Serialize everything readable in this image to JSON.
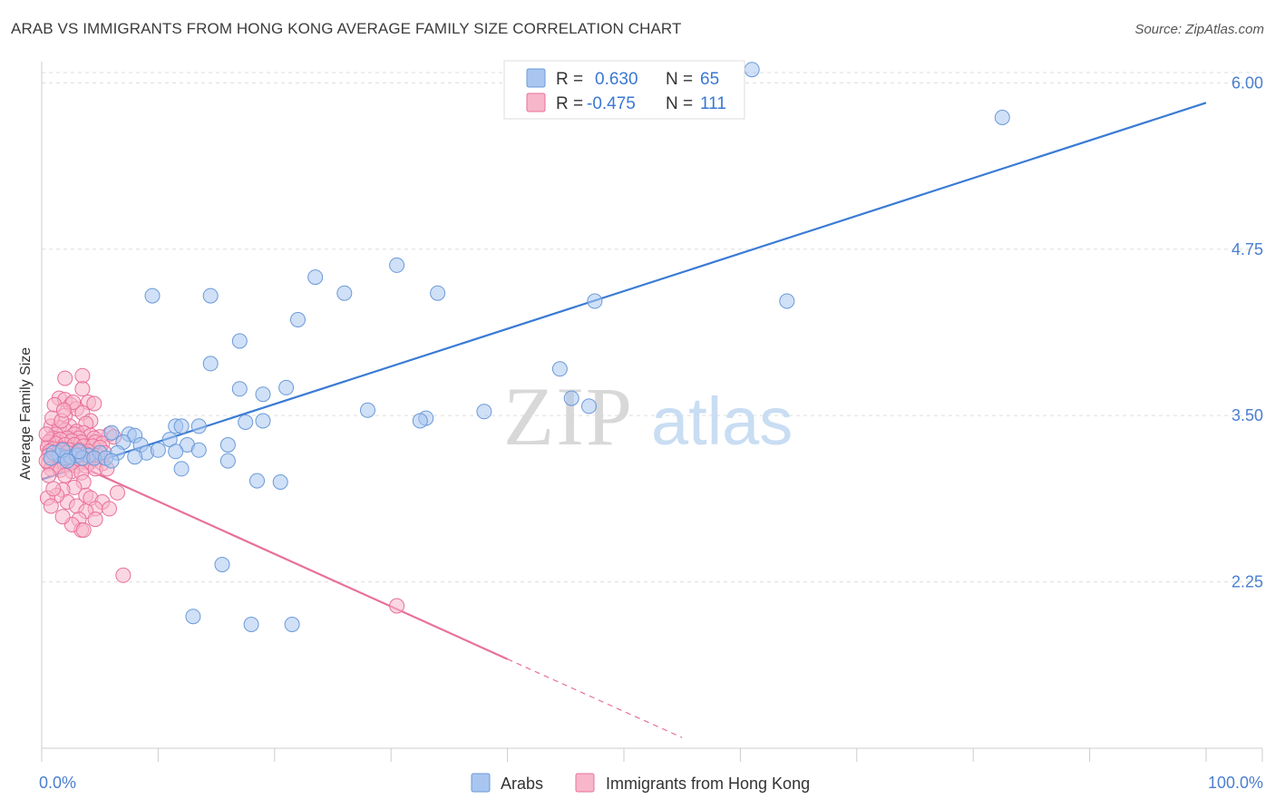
{
  "title": "ARAB VS IMMIGRANTS FROM HONG KONG AVERAGE FAMILY SIZE CORRELATION CHART",
  "source": "Source: ZipAtlas.com",
  "watermark": {
    "zip": "ZIP",
    "atlas": "atlas"
  },
  "legend": {
    "r_label": "R =",
    "n_label": "N =",
    "rows": [
      {
        "r": "0.630",
        "n": "65"
      },
      {
        "r": "-0.475",
        "n": "111"
      }
    ]
  },
  "colors": {
    "arabs_fill": "#a9c6f0",
    "arabs_stroke": "#6a9ad8",
    "arabs_line": "#3a7bd5",
    "hk_fill": "#f7b6ca",
    "hk_stroke": "#e8709a",
    "hk_line": "#e8709a",
    "grid": "#dddddd",
    "tick_label": "#4a7fd0"
  },
  "chart_data": {
    "type": "scatter",
    "title": "ARAB VS IMMIGRANTS FROM HONG KONG AVERAGE FAMILY SIZE CORRELATION CHART",
    "xlabel": "",
    "ylabel": "Average Family Size",
    "xlim": [
      0,
      100
    ],
    "ylim": [
      1.0,
      6.2
    ],
    "x_tick_labels": [
      "0.0%",
      "100.0%"
    ],
    "y_ticks": [
      2.25,
      3.5,
      4.75,
      6.0
    ],
    "y_tick_labels": [
      "2.25",
      "3.50",
      "4.75",
      "6.00"
    ],
    "grid": true,
    "legend_position": "top-center",
    "series": [
      {
        "name": "Arabs",
        "r": 0.63,
        "n": 65,
        "trend": {
          "x": [
            0,
            100
          ],
          "y": [
            3.02,
            5.85
          ]
        },
        "points": [
          [
            61,
            6.1
          ],
          [
            82.5,
            5.74
          ],
          [
            30.5,
            4.63
          ],
          [
            23.5,
            4.54
          ],
          [
            9.5,
            4.4
          ],
          [
            14.5,
            4.4
          ],
          [
            26,
            4.42
          ],
          [
            34,
            4.42
          ],
          [
            47.5,
            4.36
          ],
          [
            64,
            4.36
          ],
          [
            22,
            4.22
          ],
          [
            17,
            4.06
          ],
          [
            14.5,
            3.89
          ],
          [
            44.5,
            3.85
          ],
          [
            17,
            3.7
          ],
          [
            19,
            3.66
          ],
          [
            21,
            3.71
          ],
          [
            45.5,
            3.63
          ],
          [
            47,
            3.57
          ],
          [
            28,
            3.54
          ],
          [
            38,
            3.53
          ],
          [
            33,
            3.48
          ],
          [
            32.5,
            3.46
          ],
          [
            17.5,
            3.45
          ],
          [
            19,
            3.46
          ],
          [
            11.5,
            3.42
          ],
          [
            12,
            3.42
          ],
          [
            13.5,
            3.42
          ],
          [
            6,
            3.37
          ],
          [
            7.5,
            3.36
          ],
          [
            8,
            3.35
          ],
          [
            7,
            3.3
          ],
          [
            8.5,
            3.28
          ],
          [
            11,
            3.32
          ],
          [
            12.5,
            3.28
          ],
          [
            16,
            3.28
          ],
          [
            4,
            3.2
          ],
          [
            5,
            3.22
          ],
          [
            6.5,
            3.22
          ],
          [
            9,
            3.22
          ],
          [
            11.5,
            3.23
          ],
          [
            13.5,
            3.24
          ],
          [
            1.5,
            3.2
          ],
          [
            2,
            3.18
          ],
          [
            2.5,
            3.19
          ],
          [
            3,
            3.2
          ],
          [
            3.5,
            3.18
          ],
          [
            4.5,
            3.18
          ],
          [
            5.5,
            3.18
          ],
          [
            6,
            3.16
          ],
          [
            8,
            3.19
          ],
          [
            10,
            3.24
          ],
          [
            16,
            3.16
          ],
          [
            12,
            3.1
          ],
          [
            18.5,
            3.01
          ],
          [
            20.5,
            3.0
          ],
          [
            15.5,
            2.38
          ],
          [
            13,
            1.99
          ],
          [
            18,
            1.93
          ],
          [
            21.5,
            1.93
          ],
          [
            1,
            3.22
          ],
          [
            1.8,
            3.24
          ],
          [
            2.2,
            3.16
          ],
          [
            3.2,
            3.23
          ],
          [
            0.8,
            3.18
          ]
        ]
      },
      {
        "name": "Immigrants from Hong Kong",
        "r": -0.475,
        "n": 111,
        "trend": {
          "x": [
            0,
            40
          ],
          "y": [
            3.25,
            1.67
          ]
        },
        "trend_dashed": {
          "x": [
            40,
            55
          ],
          "y": [
            1.67,
            1.08
          ]
        },
        "points": [
          [
            2,
            3.78
          ],
          [
            3.5,
            3.8
          ],
          [
            3.5,
            3.7
          ],
          [
            1.5,
            3.63
          ],
          [
            2,
            3.62
          ],
          [
            4,
            3.6
          ],
          [
            4.5,
            3.59
          ],
          [
            2.5,
            3.58
          ],
          [
            3,
            3.55
          ],
          [
            3.5,
            3.52
          ],
          [
            2,
            3.5
          ],
          [
            4.2,
            3.46
          ],
          [
            3.8,
            3.44
          ],
          [
            2.4,
            3.42
          ],
          [
            0.8,
            3.42
          ],
          [
            1.5,
            3.41
          ],
          [
            2,
            3.39
          ],
          [
            3,
            3.38
          ],
          [
            3.6,
            3.37
          ],
          [
            2.8,
            3.36
          ],
          [
            1.2,
            3.36
          ],
          [
            4.2,
            3.35
          ],
          [
            5.8,
            3.36
          ],
          [
            5,
            3.34
          ],
          [
            4.5,
            3.33
          ],
          [
            3.2,
            3.33
          ],
          [
            2.2,
            3.33
          ],
          [
            1,
            3.33
          ],
          [
            0.8,
            3.32
          ],
          [
            1.6,
            3.32
          ],
          [
            2.6,
            3.31
          ],
          [
            3.4,
            3.3
          ],
          [
            4.6,
            3.3
          ],
          [
            5.2,
            3.29
          ],
          [
            0.6,
            3.3
          ],
          [
            1.2,
            3.29
          ],
          [
            2,
            3.28
          ],
          [
            2.8,
            3.28
          ],
          [
            3.6,
            3.27
          ],
          [
            4.4,
            3.27
          ],
          [
            5,
            3.26
          ],
          [
            0.5,
            3.26
          ],
          [
            1,
            3.25
          ],
          [
            1.8,
            3.25
          ],
          [
            2.4,
            3.24
          ],
          [
            3.2,
            3.24
          ],
          [
            4,
            3.23
          ],
          [
            0.7,
            3.23
          ],
          [
            1.4,
            3.22
          ],
          [
            2.2,
            3.22
          ],
          [
            3,
            3.21
          ],
          [
            3.8,
            3.21
          ],
          [
            4.8,
            3.2
          ],
          [
            0.6,
            3.2
          ],
          [
            1.2,
            3.19
          ],
          [
            2,
            3.19
          ],
          [
            2.8,
            3.18
          ],
          [
            3.6,
            3.18
          ],
          [
            4.4,
            3.17
          ],
          [
            0.8,
            3.17
          ],
          [
            1.6,
            3.16
          ],
          [
            2.4,
            3.16
          ],
          [
            3.2,
            3.15
          ],
          [
            4.2,
            3.15
          ],
          [
            5.2,
            3.14
          ],
          [
            0.6,
            3.14
          ],
          [
            1.4,
            3.13
          ],
          [
            2.2,
            3.13
          ],
          [
            3,
            3.12
          ],
          [
            3.8,
            3.12
          ],
          [
            4.6,
            3.1
          ],
          [
            5.6,
            3.1
          ],
          [
            0.8,
            3.1
          ],
          [
            1.6,
            3.09
          ],
          [
            2.6,
            3.08
          ],
          [
            3.4,
            3.07
          ],
          [
            2,
            3.05
          ],
          [
            3.6,
            3.0
          ],
          [
            2.8,
            2.96
          ],
          [
            1.8,
            2.94
          ],
          [
            6.5,
            2.92
          ],
          [
            3.8,
            2.9
          ],
          [
            4.2,
            2.88
          ],
          [
            5.2,
            2.85
          ],
          [
            2.2,
            2.85
          ],
          [
            3,
            2.82
          ],
          [
            4.6,
            2.8
          ],
          [
            5.8,
            2.8
          ],
          [
            3.8,
            2.78
          ],
          [
            3.2,
            2.72
          ],
          [
            4.6,
            2.72
          ],
          [
            3.4,
            2.64
          ],
          [
            2.6,
            2.68
          ],
          [
            3.6,
            2.64
          ],
          [
            1.8,
            2.74
          ],
          [
            1.3,
            2.9
          ],
          [
            0.5,
            2.88
          ],
          [
            0.8,
            2.82
          ],
          [
            1,
            2.95
          ],
          [
            0.6,
            3.05
          ],
          [
            7,
            2.3
          ],
          [
            30.5,
            2.07
          ],
          [
            1.1,
            3.58
          ],
          [
            2.7,
            3.6
          ],
          [
            0.9,
            3.48
          ],
          [
            1.7,
            3.46
          ],
          [
            6.2,
            3.34
          ],
          [
            5.4,
            3.22
          ],
          [
            0.4,
            3.36
          ],
          [
            0.4,
            3.16
          ],
          [
            1.9,
            3.54
          ]
        ]
      }
    ]
  },
  "bottom_legend": {
    "arabs": "Arabs",
    "hk": "Immigrants from Hong Kong"
  }
}
